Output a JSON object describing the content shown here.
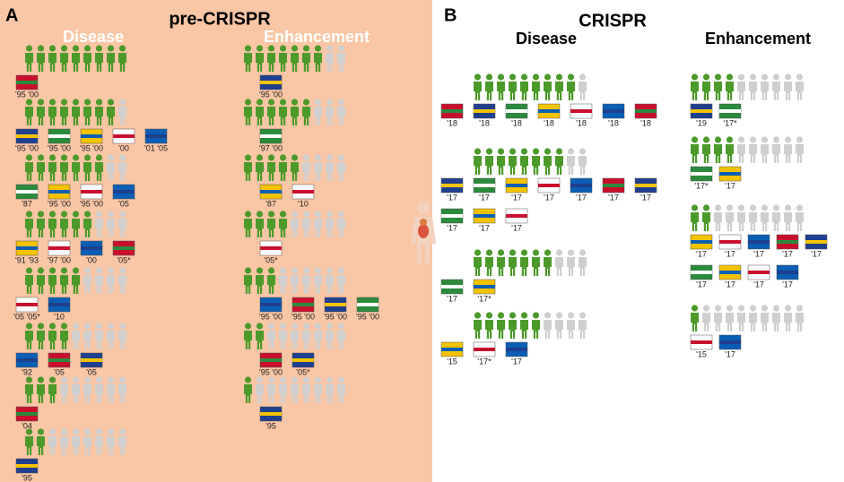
{
  "panels": [
    {
      "letter": "A",
      "title": "pre-CRISPR",
      "columns": [
        {
          "heading": "Disease",
          "rows": [
            {
              "green": 9,
              "total": 9,
              "labels": [
                "'95 '00"
              ]
            },
            {
              "green": 8,
              "total": 9,
              "labels": [
                "'95 '00",
                "'95 '00",
                "'95 '00",
                "'00",
                "'01 '05"
              ]
            },
            {
              "green": 7,
              "total": 9,
              "labels": [
                "'87",
                "'95 '00",
                "'95 '00",
                "'05"
              ]
            },
            {
              "green": 6,
              "total": 9,
              "labels": [
                "'91 '93",
                "'97 '00",
                "'00",
                "'05*"
              ]
            },
            {
              "green": 5,
              "total": 9,
              "labels": [
                "'05 '05*",
                "'10"
              ]
            },
            {
              "green": 4,
              "total": 9,
              "labels": [
                "'92",
                "'05",
                "'05"
              ]
            },
            {
              "green": 3,
              "total": 9,
              "labels": [
                "'04"
              ]
            },
            {
              "green": 2,
              "total": 9,
              "labels": [
                "'95"
              ]
            }
          ]
        },
        {
          "heading": "Enhancement",
          "rows": [
            {
              "green": 7,
              "total": 9,
              "labels": [
                "'95 '00"
              ]
            },
            {
              "green": 6,
              "total": 9,
              "labels": [
                "'97 '00"
              ]
            },
            {
              "green": 5,
              "total": 9,
              "labels": [
                "'87",
                "'10"
              ]
            },
            {
              "green": 4,
              "total": 9,
              "labels": [
                "'05*"
              ]
            },
            {
              "green": 3,
              "total": 9,
              "labels": [
                "'95 '00",
                "'95 '00",
                "'95 '00",
                "'95 '00"
              ]
            },
            {
              "green": 2,
              "total": 9,
              "labels": [
                "'95 '00",
                "'05*"
              ]
            },
            {
              "green": 1,
              "total": 9,
              "labels": [
                "'95"
              ]
            }
          ]
        }
      ]
    },
    {
      "letter": "B",
      "title": "CRISPR",
      "columns": [
        {
          "heading": "Disease",
          "rows": [
            {
              "green": 9,
              "total": 10,
              "labels": [
                "'18",
                "'18",
                "'18",
                "'18",
                "'18",
                "'18",
                "'18"
              ]
            },
            {
              "green": 8,
              "total": 10,
              "labels": [
                "'17",
                "'17",
                "'17",
                "'17",
                "'17",
                "'17",
                "'17",
                "'17",
                "'17",
                "'17"
              ]
            },
            {
              "green": 7,
              "total": 10,
              "labels": [
                "'17",
                "'17*"
              ]
            },
            {
              "green": 6,
              "total": 10,
              "labels": [
                "'15",
                "'17*",
                "'17"
              ]
            }
          ]
        },
        {
          "heading": "Enhancement",
          "rows": [
            {
              "green": 4,
              "total": 10,
              "labels": [
                "'19",
                "'17*"
              ]
            },
            {
              "green": 4,
              "total": 10,
              "labels": [
                "'17*",
                "'17"
              ]
            },
            {
              "green": 2,
              "total": 10,
              "labels": [
                "'17",
                "'17",
                "'17",
                "'17",
                "'17",
                "'17",
                "'17",
                "'17",
                "'17"
              ]
            },
            {
              "green": 1,
              "total": 10,
              "labels": [
                "'15",
                "'17"
              ]
            }
          ]
        }
      ]
    }
  ]
}
